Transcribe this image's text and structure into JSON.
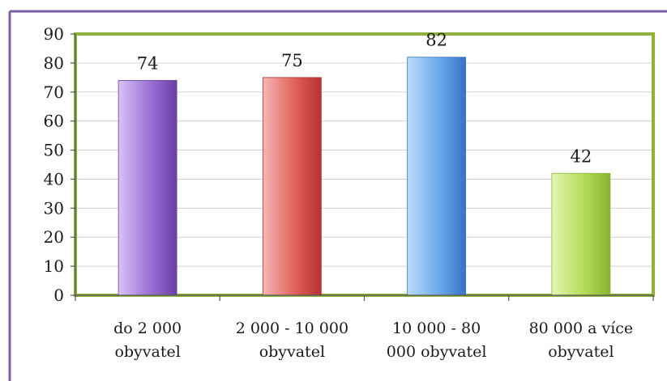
{
  "chart_data": {
    "type": "bar",
    "categories": [
      [
        "do 2 000",
        "obyvatel"
      ],
      [
        "2 000 - 10 000",
        "obyvatel"
      ],
      [
        "10 000 - 80",
        "000 obyvatel"
      ],
      [
        "80 000 a více",
        "obyvatel"
      ]
    ],
    "values": [
      74,
      75,
      82,
      42
    ],
    "data_labels": [
      "74",
      "75",
      "82",
      "42"
    ],
    "ylim": [
      0,
      90
    ],
    "yticks": [
      0,
      10,
      20,
      30,
      40,
      50,
      60,
      70,
      80,
      90
    ],
    "grid": true,
    "legend": "none",
    "title": "",
    "xlabel": "",
    "ylabel": "",
    "colors": {
      "bars": [
        "#9b6fd6",
        "#e0605c",
        "#6aa8e8",
        "#b5dc59"
      ],
      "bars_light": [
        "#d7c3f5",
        "#f6b6b3",
        "#bcdcfb",
        "#e3f5b4"
      ],
      "bars_dark": [
        "#6b3fa3",
        "#b53230",
        "#3573c5",
        "#86b52e"
      ],
      "plot_border": "#8fb33a",
      "frame_border": "#7d5fa6",
      "grid": "#d0d0d0"
    }
  }
}
